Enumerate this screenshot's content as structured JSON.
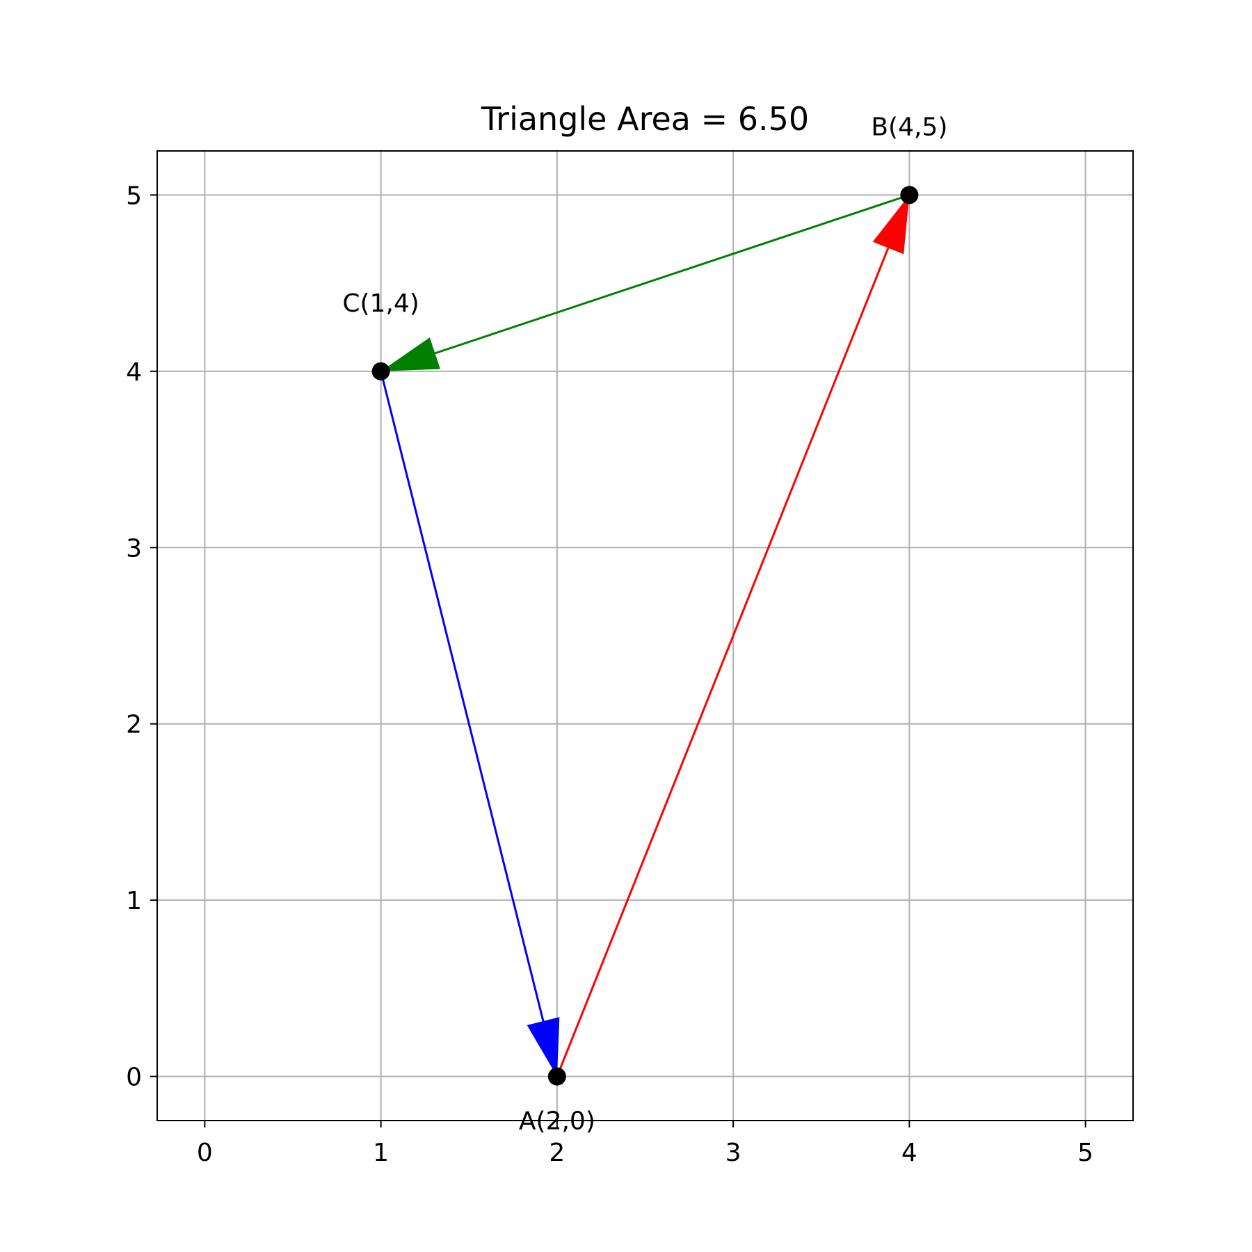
{
  "chart_data": {
    "type": "line",
    "title": "Triangle Area = 6.50",
    "xlabel": "",
    "ylabel": "",
    "xlim": [
      -0.27,
      5.27
    ],
    "ylim": [
      -0.25,
      5.25
    ],
    "xticks": [
      "0",
      "1",
      "2",
      "3",
      "4",
      "5"
    ],
    "yticks": [
      "0",
      "1",
      "2",
      "3",
      "4",
      "5"
    ],
    "grid": true,
    "points": [
      {
        "label": "A(2,0)",
        "x": 2,
        "y": 0,
        "label_position": "below"
      },
      {
        "label": "B(4,5)",
        "x": 4,
        "y": 5,
        "label_position": "above"
      },
      {
        "label": "C(1,4)",
        "x": 1,
        "y": 4,
        "label_position": "above"
      }
    ],
    "vectors": [
      {
        "from": "A",
        "to": "B",
        "x": [
          2,
          4
        ],
        "y": [
          0,
          5
        ],
        "color": "#ff0000"
      },
      {
        "from": "B",
        "to": "C",
        "x": [
          4,
          1
        ],
        "y": [
          5,
          4
        ],
        "color": "#008000"
      },
      {
        "from": "C",
        "to": "A",
        "x": [
          1,
          2
        ],
        "y": [
          4,
          0
        ],
        "color": "#0000ff"
      }
    ]
  },
  "colors": {
    "grid": "#b0b0b0",
    "axes": "#000000",
    "point": "#000000"
  }
}
